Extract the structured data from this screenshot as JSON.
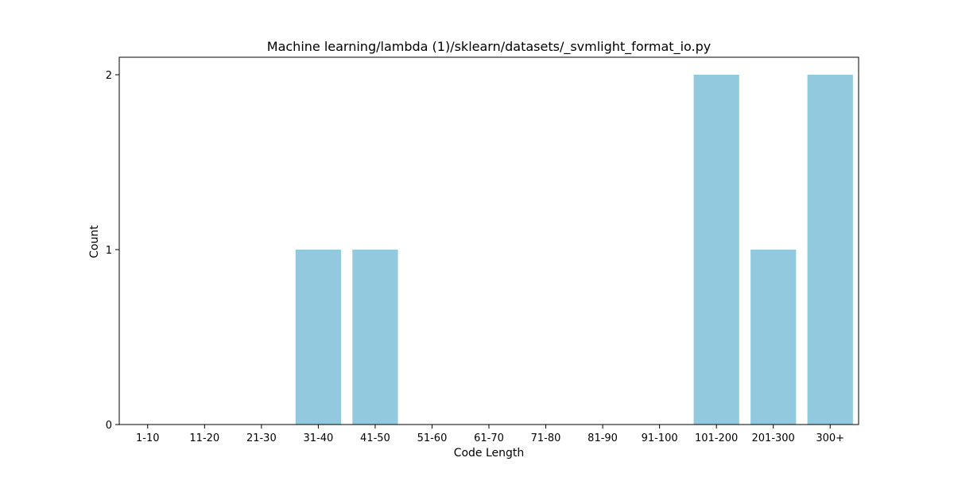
{
  "chart_data": {
    "type": "bar",
    "title": "Machine learning/lambda (1)/sklearn/datasets/_svmlight_format_io.py",
    "xlabel": "Code Length",
    "ylabel": "Count",
    "categories": [
      "1-10",
      "11-20",
      "21-30",
      "31-40",
      "41-50",
      "51-60",
      "61-70",
      "71-80",
      "81-90",
      "91-100",
      "101-200",
      "201-300",
      "300+"
    ],
    "values": [
      0,
      0,
      0,
      1,
      1,
      0,
      0,
      0,
      0,
      0,
      2,
      1,
      2
    ],
    "ylim": [
      0,
      2.1
    ],
    "yticks": [
      "0",
      "1",
      "2"
    ],
    "bar_color": "#92c9df",
    "grid": false,
    "legend": "none"
  }
}
